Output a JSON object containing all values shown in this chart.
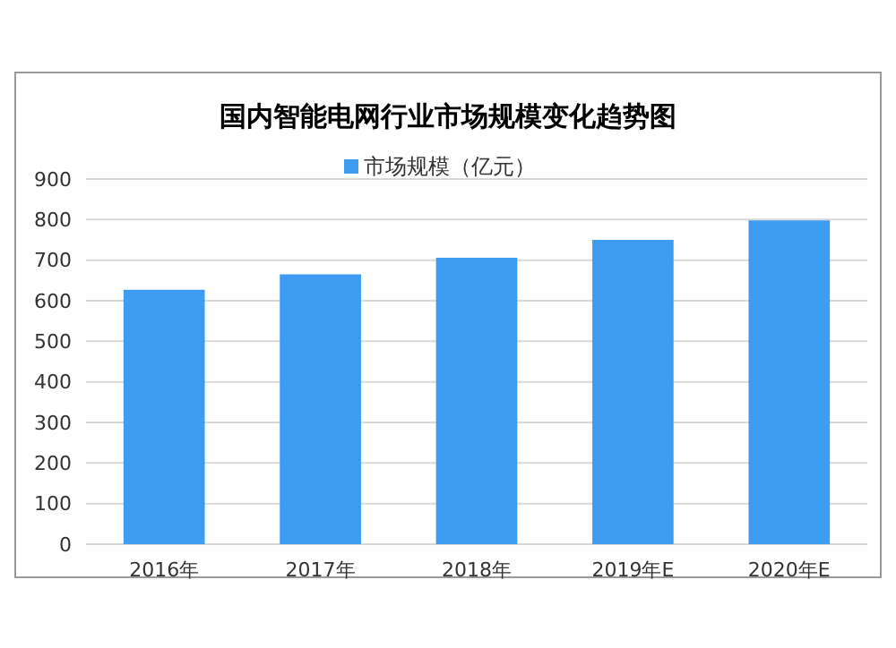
{
  "chart_data": {
    "type": "bar",
    "title": "国内智能电网行业市场规模变化趋势图",
    "categories": [
      "2016年",
      "2017年",
      "2018年",
      "2019年E",
      "2020年E"
    ],
    "series": [
      {
        "name": "市场规模（亿元）",
        "color": "#3d9cf0",
        "values": [
          627,
          665,
          706,
          750,
          798
        ]
      }
    ],
    "ylim": [
      0,
      900
    ],
    "yticks": [
      0,
      100,
      200,
      300,
      400,
      500,
      600,
      700,
      800,
      900
    ],
    "grid": "y",
    "legend": "top"
  }
}
